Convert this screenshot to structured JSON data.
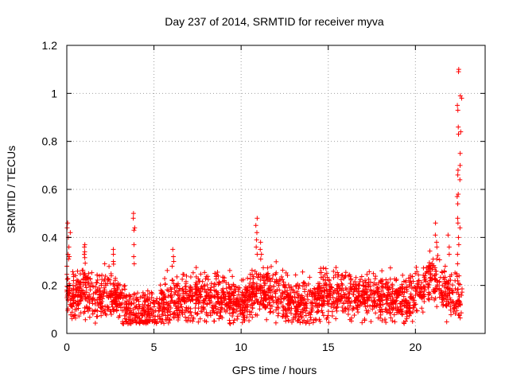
{
  "chart_data": {
    "type": "scatter",
    "title": "Day 237 of 2014, SRMTID for receiver myva",
    "xlabel": "GPS time / hours",
    "ylabel": "SRMTID / TECUs",
    "xlim": [
      0,
      24
    ],
    "ylim": [
      0,
      1.2
    ],
    "xticks": [
      0,
      5,
      10,
      15,
      20
    ],
    "yticks": [
      0,
      0.2,
      0.4,
      0.6,
      0.8,
      1.0,
      1.2
    ],
    "ytick_labels": [
      "0",
      "0.2",
      "0.4",
      "0.6",
      "0.8",
      "1",
      "1.2"
    ],
    "xtick_labels": [
      "0",
      "5",
      "10",
      "15",
      "20"
    ],
    "grid": true,
    "marker": "+",
    "color": "#ff0000",
    "baseline_profile": [
      [
        0.0,
        0.17
      ],
      [
        0.5,
        0.16
      ],
      [
        1.0,
        0.18
      ],
      [
        1.5,
        0.15
      ],
      [
        2.0,
        0.15
      ],
      [
        2.5,
        0.16
      ],
      [
        3.0,
        0.14
      ],
      [
        3.5,
        0.1
      ],
      [
        4.0,
        0.09
      ],
      [
        4.5,
        0.09
      ],
      [
        5.0,
        0.09
      ],
      [
        5.5,
        0.11
      ],
      [
        6.0,
        0.14
      ],
      [
        7.0,
        0.14
      ],
      [
        8.0,
        0.15
      ],
      [
        9.0,
        0.15
      ],
      [
        10.0,
        0.13
      ],
      [
        11.0,
        0.17
      ],
      [
        12.0,
        0.17
      ],
      [
        13.0,
        0.12
      ],
      [
        14.0,
        0.13
      ],
      [
        15.0,
        0.17
      ],
      [
        16.0,
        0.16
      ],
      [
        17.0,
        0.16
      ],
      [
        18.0,
        0.15
      ],
      [
        19.0,
        0.13
      ],
      [
        20.0,
        0.17
      ],
      [
        21.0,
        0.22
      ],
      [
        22.0,
        0.17
      ],
      [
        22.7,
        0.15
      ]
    ],
    "spikes": [
      {
        "x": 0.05,
        "y": [
          0.46,
          0.44,
          0.4,
          0.33,
          0.31,
          0.28
        ]
      },
      {
        "x": 0.15,
        "y": [
          0.42,
          0.36,
          0.32
        ]
      },
      {
        "x": 1.05,
        "y": [
          0.37,
          0.36,
          0.34,
          0.33
        ]
      },
      {
        "x": 2.7,
        "y": [
          0.35,
          0.33,
          0.3
        ]
      },
      {
        "x": 3.85,
        "y": [
          0.5,
          0.48,
          0.44,
          0.43,
          0.37,
          0.32,
          0.29
        ]
      },
      {
        "x": 6.1,
        "y": [
          0.35,
          0.32,
          0.3,
          0.28
        ]
      },
      {
        "x": 10.9,
        "y": [
          0.48,
          0.45,
          0.42,
          0.39,
          0.36,
          0.33
        ]
      },
      {
        "x": 11.15,
        "y": [
          0.38,
          0.35,
          0.33,
          0.31
        ]
      },
      {
        "x": 21.2,
        "y": [
          0.46,
          0.41,
          0.38,
          0.36
        ]
      },
      {
        "x": 21.9,
        "y": [
          0.41,
          0.36,
          0.33
        ]
      },
      {
        "x": 22.45,
        "y": [
          1.1,
          1.09,
          0.95,
          0.93,
          0.86,
          0.83,
          0.68,
          0.66,
          0.58,
          0.57,
          0.54,
          0.48,
          0.46,
          0.4,
          0.37,
          0.33,
          0.29,
          0.24
        ]
      },
      {
        "x": 22.6,
        "y": [
          0.99,
          0.98,
          0.84,
          0.75,
          0.7,
          0.64,
          0.44
        ]
      }
    ]
  }
}
